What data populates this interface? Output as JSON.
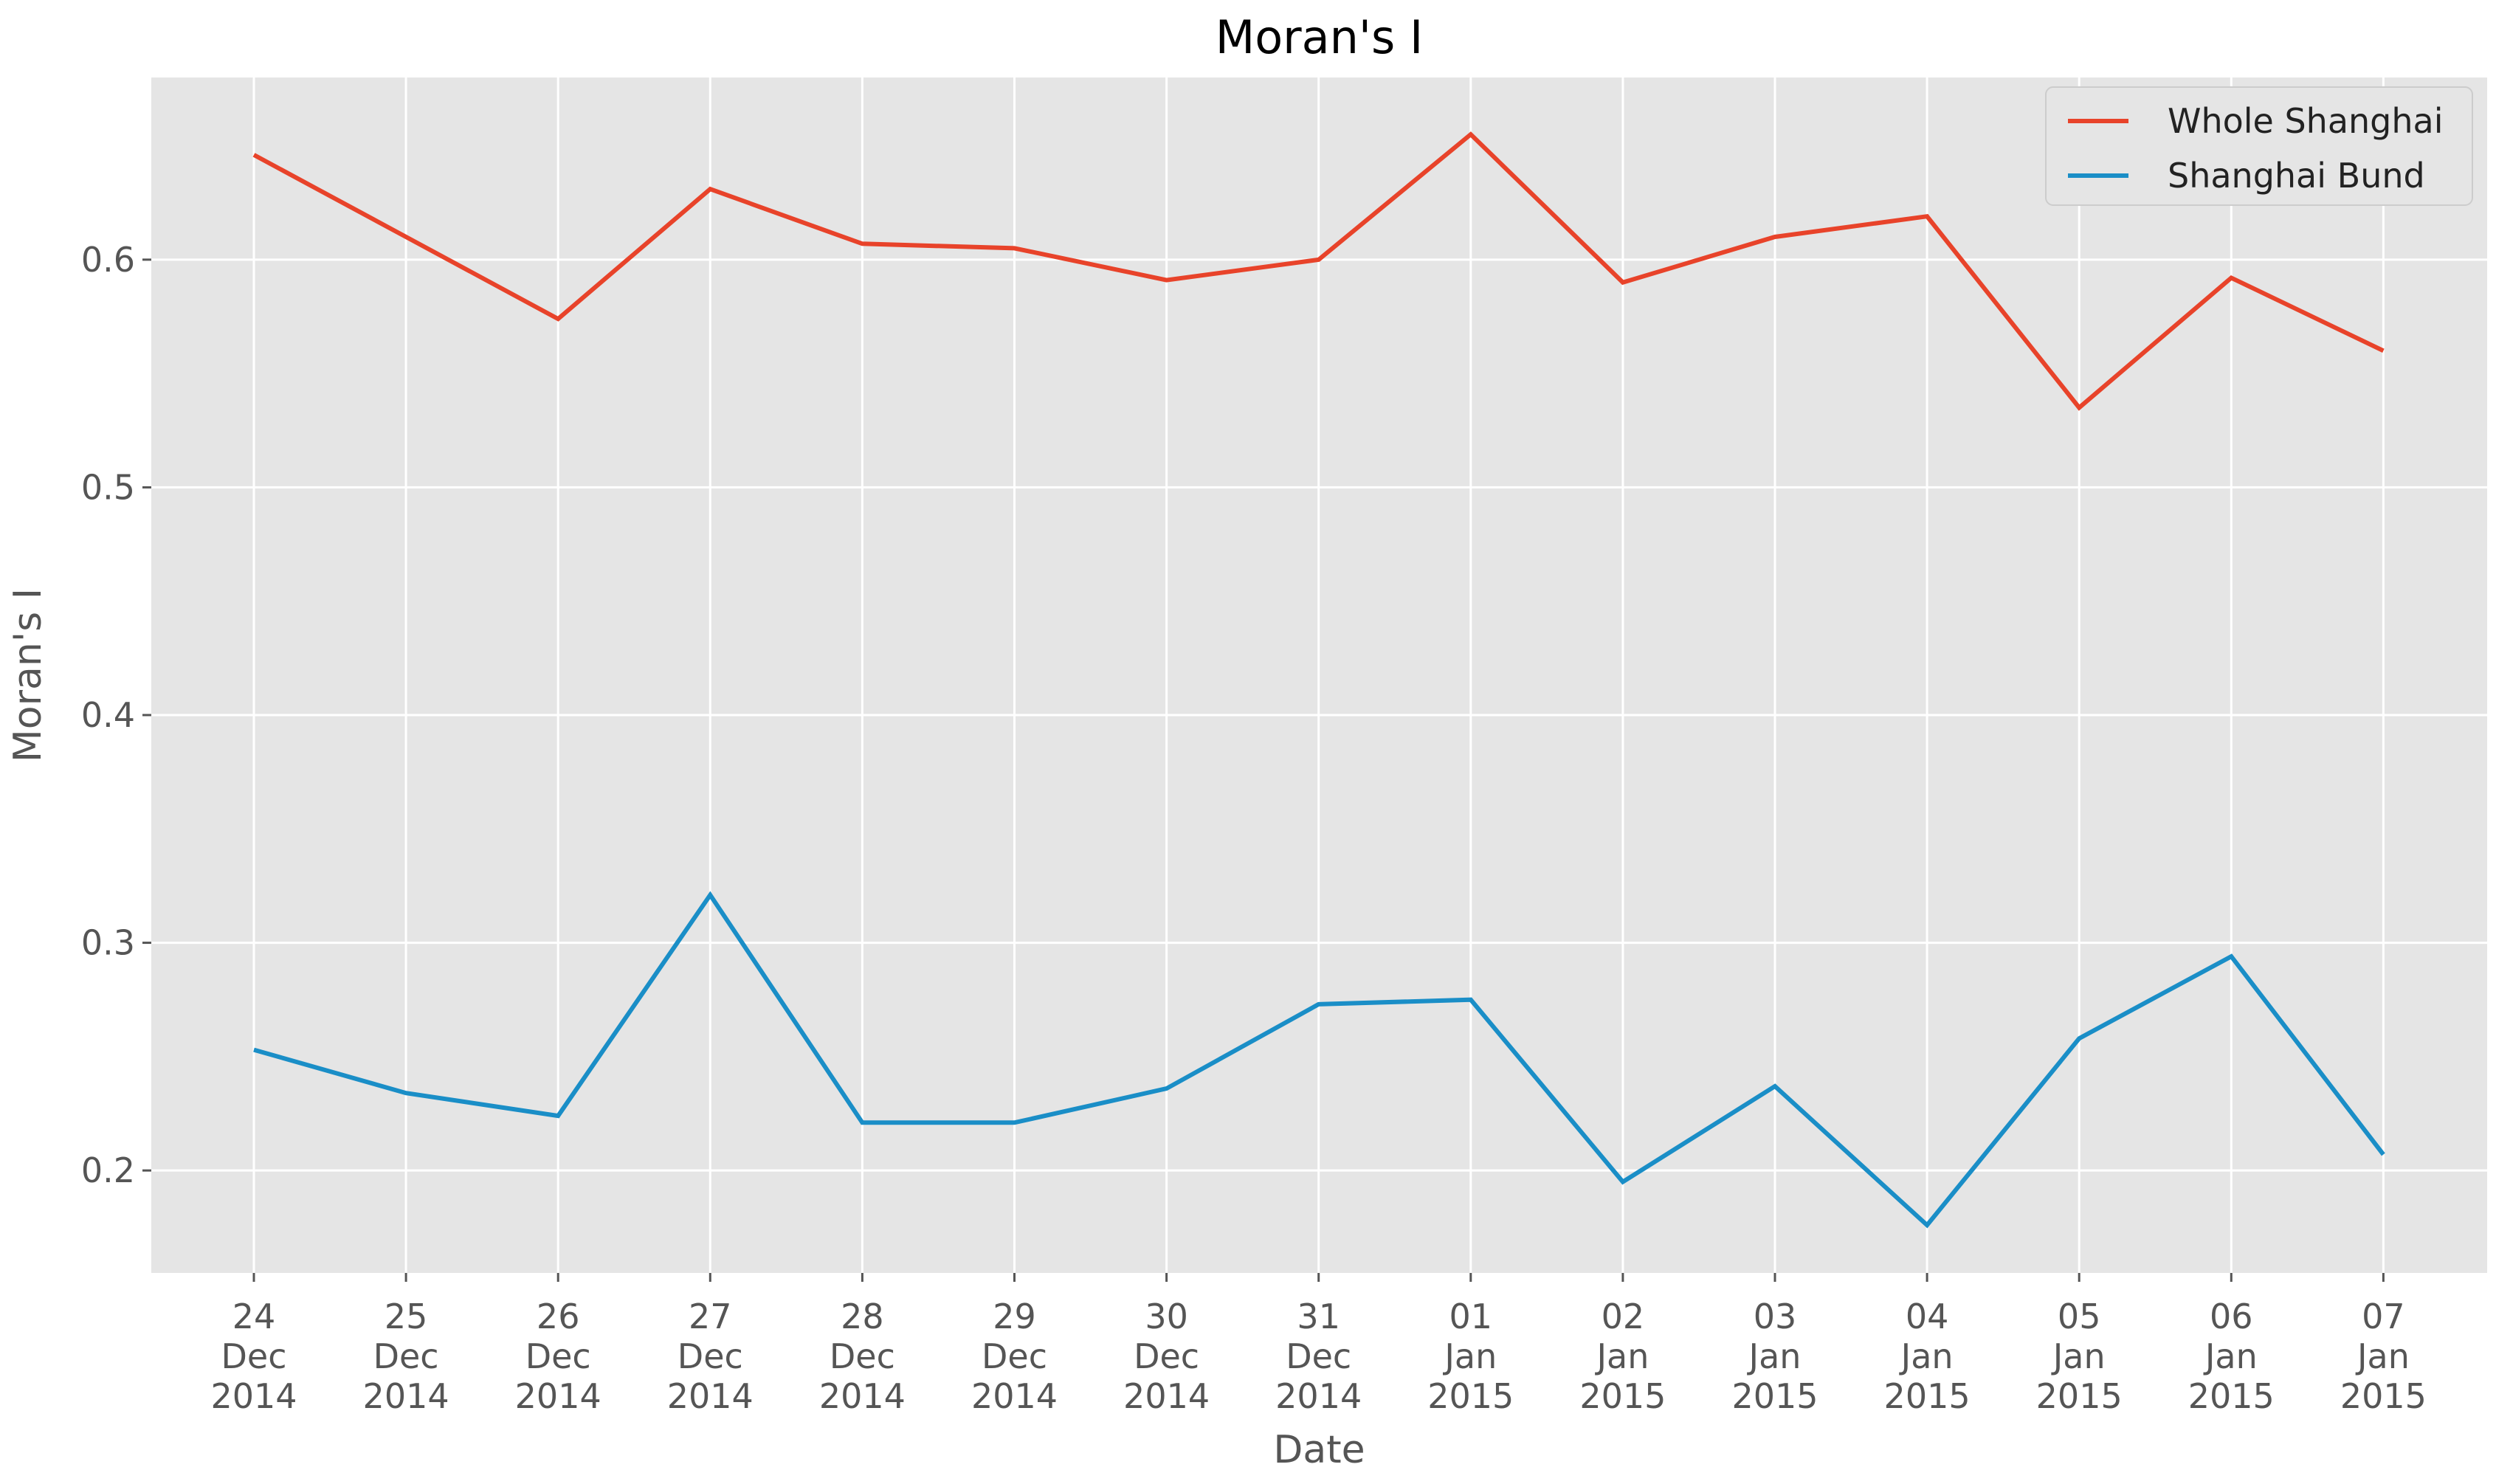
{
  "chart_data": {
    "type": "line",
    "title": "Moran's I",
    "xlabel": "Date",
    "ylabel": "Moran's I",
    "ylim": [
      0.155,
      0.68
    ],
    "yticks": [
      "0.2",
      "0.3",
      "0.4",
      "0.5",
      "0.6"
    ],
    "grid": true,
    "legend_position": "top-right",
    "categories": [
      [
        "24",
        "Dec",
        "2014"
      ],
      [
        "25",
        "Dec",
        "2014"
      ],
      [
        "26",
        "Dec",
        "2014"
      ],
      [
        "27",
        "Dec",
        "2014"
      ],
      [
        "28",
        "Dec",
        "2014"
      ],
      [
        "29",
        "Dec",
        "2014"
      ],
      [
        "30",
        "Dec",
        "2014"
      ],
      [
        "31",
        "Dec",
        "2014"
      ],
      [
        "01",
        "Jan",
        "2015"
      ],
      [
        "02",
        "Jan",
        "2015"
      ],
      [
        "03",
        "Jan",
        "2015"
      ],
      [
        "04",
        "Jan",
        "2015"
      ],
      [
        "05",
        "Jan",
        "2015"
      ],
      [
        "06",
        "Jan",
        "2015"
      ],
      [
        "07",
        "Jan",
        "2015"
      ]
    ],
    "series": [
      {
        "name": "Whole Shanghai",
        "color": "#e8432a",
        "values": [
          0.646,
          0.61,
          0.574,
          0.631,
          0.607,
          0.605,
          0.591,
          0.6,
          0.655,
          0.59,
          0.61,
          0.619,
          0.535,
          0.592,
          0.56
        ]
      },
      {
        "name": "Shanghai Bund",
        "color": "#1a8ec7",
        "values": [
          0.253,
          0.234,
          0.224,
          0.321,
          0.221,
          0.221,
          0.236,
          0.273,
          0.275,
          0.195,
          0.237,
          0.176,
          0.258,
          0.294,
          0.207
        ]
      }
    ]
  },
  "style": {
    "plot_background": "#e5e5e5",
    "grid_color": "#ffffff"
  }
}
